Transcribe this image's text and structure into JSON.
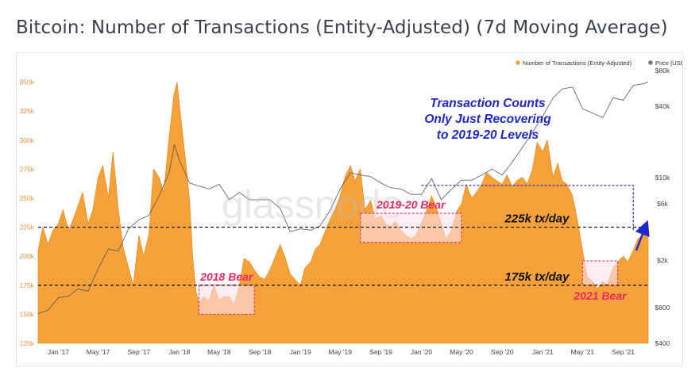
{
  "page": {
    "title": "Bitcoin: Number of Transactions (Entity-Adjusted) (7d Moving Average)",
    "watermark": "glassnode"
  },
  "colors": {
    "series_fill": "#f7a13b",
    "series_stroke": "#e88f24",
    "price_line": "#555555",
    "bear_box": "#e8365f",
    "bear_text": "#e8295e",
    "annotation": "#1e28c8",
    "left_tick": "#e9913a",
    "right_tick": "#444444"
  },
  "chart_data": {
    "type": "area",
    "title": "Bitcoin: Number of Transactions (Entity-Adjusted) (7d Moving Average)",
    "legend": {
      "placement": "top-right",
      "entries": [
        {
          "label": "Number of Transactions (Entity-Adjusted)",
          "color": "#f7a13b"
        },
        {
          "label": "Price [USD]",
          "color": "#777777"
        }
      ]
    },
    "x_ticks": [
      "Jan '17",
      "May '17",
      "Sep '17",
      "Jan '18",
      "May '18",
      "Sep '18",
      "Jan '19",
      "May '19",
      "Sep '19",
      "Jan '20",
      "May '20",
      "Sep '20",
      "Jan '21",
      "May '21",
      "Sep '21"
    ],
    "x_range": [
      "2016-11-01",
      "2021-11-15"
    ],
    "y_left": {
      "ticks": [
        "125k",
        "150k",
        "175k",
        "200k",
        "225k",
        "250k",
        "275k",
        "300k",
        "325k",
        "350k"
      ],
      "range": [
        125000,
        360000
      ]
    },
    "y_right": {
      "scale": "log",
      "ticks": [
        "$400",
        "$800",
        "$2k",
        "$6k",
        "$10k",
        "$40k",
        "$80k"
      ],
      "range": [
        400,
        80000
      ]
    },
    "grid": false,
    "series": [
      {
        "name": "Number of Transactions (Entity-Adjusted)",
        "axis": "left",
        "points": [
          [
            "2016-11-01",
            205000
          ],
          [
            "2016-11-15",
            225000
          ],
          [
            "2016-12-01",
            210000
          ],
          [
            "2016-12-15",
            222000
          ],
          [
            "2017-01-01",
            228000
          ],
          [
            "2017-01-15",
            240000
          ],
          [
            "2017-02-01",
            222000
          ],
          [
            "2017-02-15",
            232000
          ],
          [
            "2017-03-01",
            243000
          ],
          [
            "2017-03-15",
            255000
          ],
          [
            "2017-04-01",
            228000
          ],
          [
            "2017-04-15",
            240000
          ],
          [
            "2017-05-01",
            268000
          ],
          [
            "2017-05-15",
            278000
          ],
          [
            "2017-06-01",
            250000
          ],
          [
            "2017-06-15",
            290000
          ],
          [
            "2017-07-01",
            240000
          ],
          [
            "2017-07-15",
            208000
          ],
          [
            "2017-08-01",
            190000
          ],
          [
            "2017-08-15",
            175000
          ],
          [
            "2017-09-01",
            218000
          ],
          [
            "2017-09-15",
            200000
          ],
          [
            "2017-10-01",
            218000
          ],
          [
            "2017-10-15",
            275000
          ],
          [
            "2017-11-01",
            268000
          ],
          [
            "2017-11-15",
            255000
          ],
          [
            "2017-12-01",
            302000
          ],
          [
            "2017-12-15",
            338000
          ],
          [
            "2017-12-25",
            350000
          ],
          [
            "2018-01-05",
            320000
          ],
          [
            "2018-01-20",
            282000
          ],
          [
            "2018-02-01",
            248000
          ],
          [
            "2018-02-10",
            200000
          ],
          [
            "2018-02-20",
            170000
          ],
          [
            "2018-03-01",
            160000
          ],
          [
            "2018-03-15",
            165000
          ],
          [
            "2018-04-01",
            162000
          ],
          [
            "2018-04-15",
            175000
          ],
          [
            "2018-05-01",
            162000
          ],
          [
            "2018-05-15",
            165000
          ],
          [
            "2018-06-01",
            165000
          ],
          [
            "2018-06-15",
            158000
          ],
          [
            "2018-07-01",
            175000
          ],
          [
            "2018-07-15",
            198000
          ],
          [
            "2018-08-01",
            195000
          ],
          [
            "2018-08-15",
            188000
          ],
          [
            "2018-09-01",
            182000
          ],
          [
            "2018-09-15",
            180000
          ],
          [
            "2018-10-01",
            188000
          ],
          [
            "2018-10-15",
            198000
          ],
          [
            "2018-11-01",
            210000
          ],
          [
            "2018-11-15",
            200000
          ],
          [
            "2018-12-01",
            185000
          ],
          [
            "2018-12-15",
            180000
          ],
          [
            "2019-01-01",
            175000
          ],
          [
            "2019-01-15",
            190000
          ],
          [
            "2019-02-01",
            195000
          ],
          [
            "2019-02-15",
            206000
          ],
          [
            "2019-03-01",
            210000
          ],
          [
            "2019-03-15",
            220000
          ],
          [
            "2019-04-01",
            232000
          ],
          [
            "2019-04-15",
            240000
          ],
          [
            "2019-05-01",
            252000
          ],
          [
            "2019-05-15",
            268000
          ],
          [
            "2019-06-01",
            278000
          ],
          [
            "2019-06-15",
            265000
          ],
          [
            "2019-07-01",
            275000
          ],
          [
            "2019-07-15",
            240000
          ],
          [
            "2019-08-01",
            248000
          ],
          [
            "2019-08-15",
            232000
          ],
          [
            "2019-09-01",
            235000
          ],
          [
            "2019-09-15",
            228000
          ],
          [
            "2019-10-01",
            225000
          ],
          [
            "2019-10-15",
            230000
          ],
          [
            "2019-11-01",
            222000
          ],
          [
            "2019-11-15",
            218000
          ],
          [
            "2019-12-01",
            215000
          ],
          [
            "2019-12-15",
            218000
          ],
          [
            "2020-01-01",
            228000
          ],
          [
            "2020-01-15",
            238000
          ],
          [
            "2020-02-01",
            252000
          ],
          [
            "2020-02-15",
            242000
          ],
          [
            "2020-03-01",
            228000
          ],
          [
            "2020-03-15",
            215000
          ],
          [
            "2020-04-01",
            222000
          ],
          [
            "2020-04-15",
            238000
          ],
          [
            "2020-05-01",
            245000
          ],
          [
            "2020-05-15",
            262000
          ],
          [
            "2020-06-01",
            250000
          ],
          [
            "2020-06-15",
            255000
          ],
          [
            "2020-07-01",
            262000
          ],
          [
            "2020-07-15",
            272000
          ],
          [
            "2020-08-01",
            268000
          ],
          [
            "2020-08-15",
            265000
          ],
          [
            "2020-09-01",
            262000
          ],
          [
            "2020-09-15",
            270000
          ],
          [
            "2020-10-01",
            260000
          ],
          [
            "2020-10-15",
            265000
          ],
          [
            "2020-11-01",
            268000
          ],
          [
            "2020-11-15",
            262000
          ],
          [
            "2020-12-01",
            275000
          ],
          [
            "2020-12-15",
            298000
          ],
          [
            "2021-01-01",
            290000
          ],
          [
            "2021-01-15",
            300000
          ],
          [
            "2021-02-01",
            268000
          ],
          [
            "2021-02-15",
            280000
          ],
          [
            "2021-03-01",
            265000
          ],
          [
            "2021-03-15",
            262000
          ],
          [
            "2021-04-01",
            252000
          ],
          [
            "2021-04-15",
            232000
          ],
          [
            "2021-05-01",
            205000
          ],
          [
            "2021-05-15",
            182000
          ],
          [
            "2021-06-01",
            178000
          ],
          [
            "2021-06-15",
            172000
          ],
          [
            "2021-07-01",
            178000
          ],
          [
            "2021-07-15",
            176000
          ],
          [
            "2021-08-01",
            190000
          ],
          [
            "2021-08-15",
            195000
          ],
          [
            "2021-09-01",
            200000
          ],
          [
            "2021-09-15",
            195000
          ],
          [
            "2021-10-01",
            205000
          ],
          [
            "2021-10-15",
            215000
          ],
          [
            "2021-11-01",
            218000
          ],
          [
            "2021-11-15",
            225000
          ]
        ]
      },
      {
        "name": "Price [USD]",
        "axis": "right",
        "points": [
          [
            "2016-11-01",
            710
          ],
          [
            "2016-12-01",
            760
          ],
          [
            "2017-01-01",
            970
          ],
          [
            "2017-02-01",
            1000
          ],
          [
            "2017-03-01",
            1150
          ],
          [
            "2017-04-01",
            1100
          ],
          [
            "2017-05-01",
            1700
          ],
          [
            "2017-06-01",
            2500
          ],
          [
            "2017-07-01",
            2400
          ],
          [
            "2017-08-01",
            3700
          ],
          [
            "2017-09-01",
            4400
          ],
          [
            "2017-10-01",
            4800
          ],
          [
            "2017-11-01",
            7000
          ],
          [
            "2017-12-01",
            11000
          ],
          [
            "2017-12-17",
            19000
          ],
          [
            "2018-01-01",
            14000
          ],
          [
            "2018-02-01",
            9000
          ],
          [
            "2018-03-01",
            8500
          ],
          [
            "2018-04-01",
            8000
          ],
          [
            "2018-05-01",
            8800
          ],
          [
            "2018-06-01",
            6500
          ],
          [
            "2018-07-01",
            7500
          ],
          [
            "2018-08-01",
            6500
          ],
          [
            "2018-09-01",
            6500
          ],
          [
            "2018-10-01",
            6500
          ],
          [
            "2018-11-01",
            5500
          ],
          [
            "2018-12-01",
            3500
          ],
          [
            "2019-01-01",
            3700
          ],
          [
            "2019-02-01",
            3600
          ],
          [
            "2019-03-01",
            3900
          ],
          [
            "2019-04-01",
            5300
          ],
          [
            "2019-05-01",
            8000
          ],
          [
            "2019-06-01",
            11000
          ],
          [
            "2019-07-01",
            10500
          ],
          [
            "2019-08-01",
            10200
          ],
          [
            "2019-09-01",
            9000
          ],
          [
            "2019-10-01",
            8200
          ],
          [
            "2019-11-01",
            8000
          ],
          [
            "2019-12-01",
            7200
          ],
          [
            "2020-01-01",
            7200
          ],
          [
            "2020-02-01",
            9800
          ],
          [
            "2020-03-01",
            6500
          ],
          [
            "2020-04-01",
            8000
          ],
          [
            "2020-05-01",
            9500
          ],
          [
            "2020-06-01",
            9500
          ],
          [
            "2020-07-01",
            10500
          ],
          [
            "2020-08-01",
            11800
          ],
          [
            "2020-09-01",
            10500
          ],
          [
            "2020-10-01",
            13500
          ],
          [
            "2020-11-01",
            18000
          ],
          [
            "2020-12-01",
            24000
          ],
          [
            "2021-01-01",
            33000
          ],
          [
            "2021-02-01",
            47000
          ],
          [
            "2021-03-01",
            56000
          ],
          [
            "2021-04-01",
            58000
          ],
          [
            "2021-05-01",
            38000
          ],
          [
            "2021-06-01",
            35000
          ],
          [
            "2021-07-01",
            32000
          ],
          [
            "2021-08-01",
            47000
          ],
          [
            "2021-09-01",
            45000
          ],
          [
            "2021-10-01",
            60000
          ],
          [
            "2021-11-01",
            62000
          ],
          [
            "2021-11-15",
            64000
          ]
        ]
      }
    ],
    "reference_lines": [
      {
        "label": "225k tx/day",
        "value": 225000,
        "style": "dashed"
      },
      {
        "label": "175k tx/day",
        "value": 175000,
        "style": "dashed"
      }
    ],
    "regions": [
      {
        "label": "2018 Bear",
        "x_start": "2018-03-01",
        "x_end": "2018-08-15",
        "y_low": 150000,
        "y_high": 175000
      },
      {
        "label": "2019-20 Bear",
        "x_start": "2019-07-01",
        "x_end": "2020-05-01",
        "y_low": 212000,
        "y_high": 237000
      },
      {
        "label": "2021 Bear",
        "x_start": "2021-05-01",
        "x_end": "2021-08-15",
        "y_low": 175000,
        "y_high": 196000
      }
    ],
    "annotations": [
      {
        "lines": [
          "Transaction Counts",
          "Only Just Recovering",
          "to 2019-20 Levels"
        ],
        "bracket_from": "2020-01-01",
        "bracket_to": "2021-10-01",
        "bracket_level": 261000,
        "arrow_from": [
          "2021-10-10",
          205000
        ],
        "arrow_to": [
          "2021-11-10",
          228000
        ]
      }
    ]
  }
}
